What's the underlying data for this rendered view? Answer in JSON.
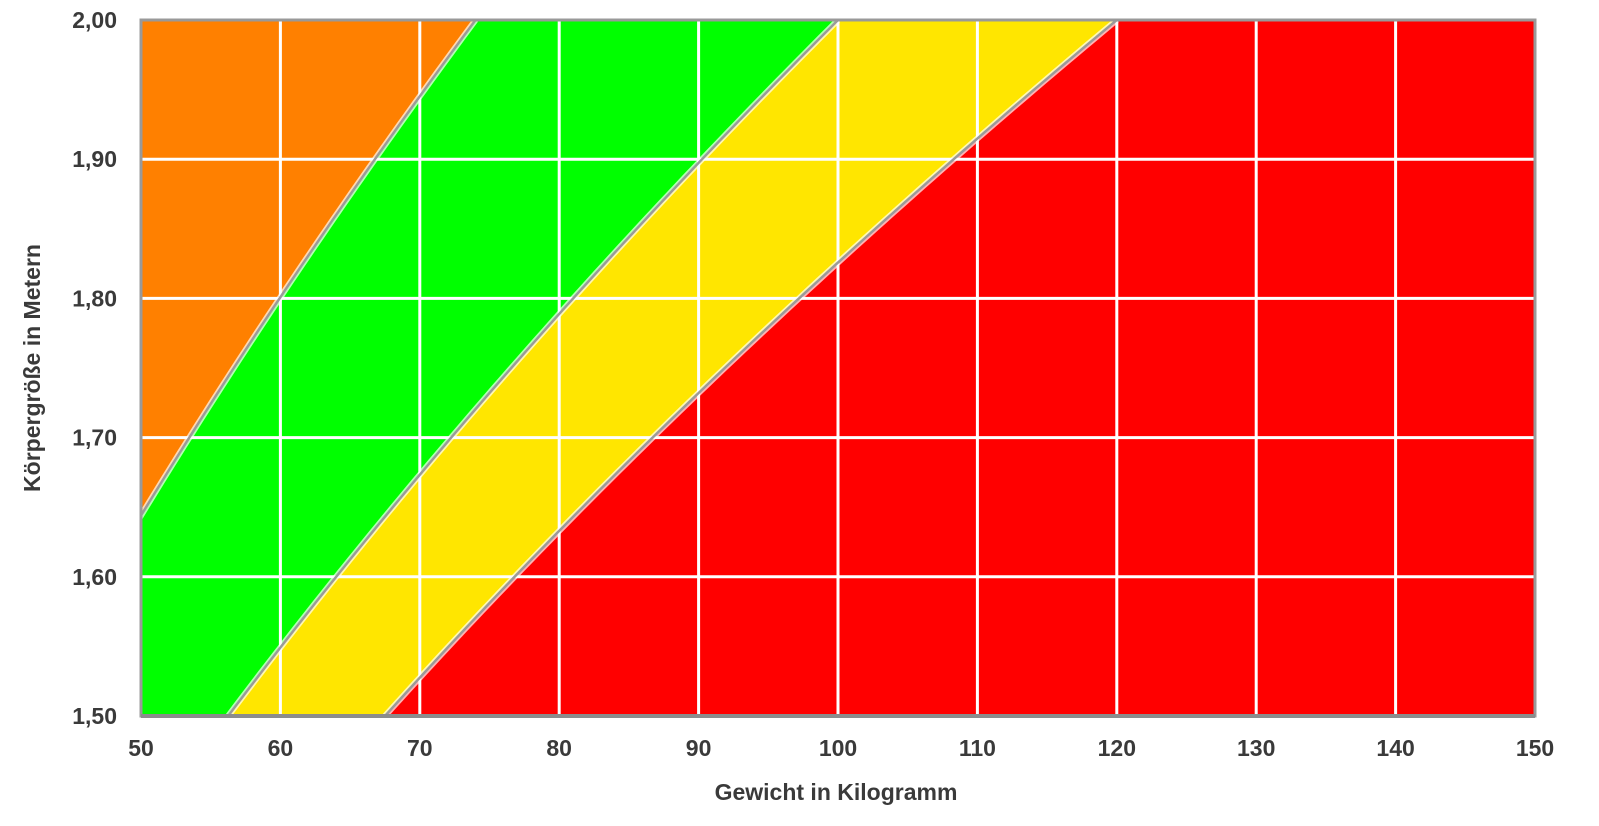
{
  "chart_data": {
    "type": "area",
    "title": "",
    "xlabel": "Gewicht in Kilogramm",
    "ylabel": "Körpergröße in Metern",
    "xlim": [
      50,
      150
    ],
    "ylim": [
      1.5,
      2.0
    ],
    "x_ticks": [
      50,
      60,
      70,
      80,
      90,
      100,
      110,
      120,
      130,
      140,
      150
    ],
    "y_ticks": [
      1.5,
      1.6,
      1.7,
      1.8,
      1.9,
      2.0
    ],
    "x_tick_labels": [
      "50",
      "60",
      "70",
      "80",
      "90",
      "100",
      "110",
      "120",
      "130",
      "140",
      "150"
    ],
    "y_tick_labels": [
      "1,50",
      "1,60",
      "1,70",
      "1,80",
      "1,90",
      "2,00"
    ],
    "grid": true,
    "bmi_boundaries": [
      18.5,
      25,
      30
    ],
    "zones": [
      {
        "bmi_min": null,
        "bmi_max": 18.5,
        "color": "#ff8000"
      },
      {
        "bmi_min": 18.5,
        "bmi_max": 25,
        "color": "#00ff00"
      },
      {
        "bmi_min": 25,
        "bmi_max": 30,
        "color": "#ffe600"
      },
      {
        "bmi_min": 30,
        "bmi_max": null,
        "color": "#ff0000"
      }
    ],
    "boundary_line_color": "#9a9a9a",
    "grid_color": "#ffffff",
    "frame_color": "#999999"
  }
}
